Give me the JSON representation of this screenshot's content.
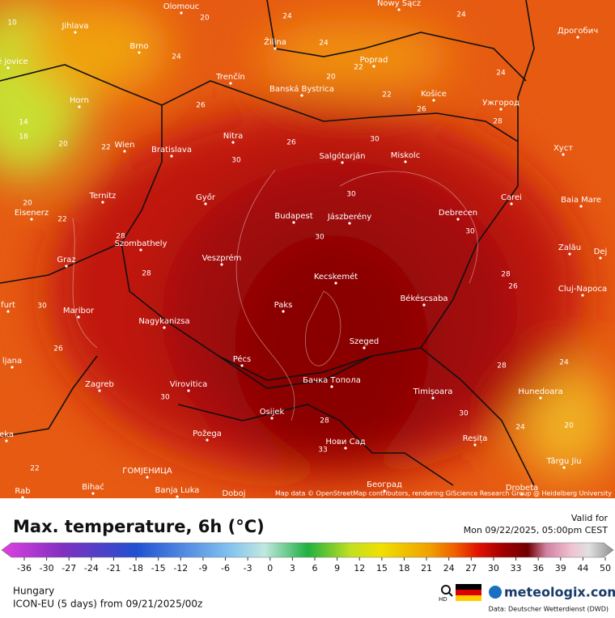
{
  "map": {
    "cities": [
      "Olomouc",
      "Nowy Sącz",
      "Jihlava",
      "Brno",
      "Žilina",
      "Poprad",
      "Дрогобич",
      "Trenčín",
      "Banská Bystrica",
      "Horn",
      "Košice",
      "Ужгород",
      "Nitra",
      "Wien",
      "Bratislava",
      "Salgótarján",
      "Miskolc",
      "Хуст",
      "Ternitz",
      "Győr",
      "Carei",
      "Baia Mare",
      "Eisenerz",
      "Budapest",
      "Jászberény",
      "Debrecen",
      "Szombathely",
      "Zalău",
      "Dej",
      "Graz",
      "Veszprém",
      "Kecskemét",
      "Cluj-Napoca",
      "Paks",
      "Békéscsaba",
      "furt",
      "Maribor",
      "Nagykanizsa",
      "Szeged",
      "Pécs",
      "ljana",
      "Бачка Топола",
      "Virovitica",
      "Timișoara",
      "Hunedoara",
      "Zagreb",
      "Osijek",
      "Požega",
      "Нови Сад",
      "Reșița",
      "Târgu Jiu",
      "Bihać",
      "ГОМЈЕНИЦА",
      "Banja Luka",
      "Doboj",
      "Београд",
      "Drobeta",
      "ské jovice",
      "eka",
      "Rab"
    ],
    "contour_labels": [
      10,
      20,
      24,
      24,
      24,
      24,
      22,
      20,
      24,
      22,
      26,
      26,
      28,
      14,
      18,
      20,
      22,
      30,
      26,
      30,
      30,
      20,
      22,
      30,
      30,
      28,
      28,
      28,
      26,
      30,
      26,
      24,
      28,
      30,
      30,
      28,
      24,
      20,
      22,
      33
    ],
    "attribution": "Map data © OpenStreetMap contributors, rendering GIScience Research Group @ Heidelberg University"
  },
  "legend": {
    "title": "Max. temperature, 6h (°C)",
    "valid_label": "Valid for",
    "valid_time": "Mon 09/22/2025, 05:00pm CEST",
    "ticks": [
      -36,
      -30,
      -27,
      -24,
      -21,
      -18,
      -15,
      -12,
      -9,
      -6,
      -3,
      0,
      3,
      6,
      9,
      12,
      15,
      18,
      21,
      24,
      27,
      30,
      33,
      36,
      39,
      44,
      50
    ]
  },
  "footer": {
    "region": "Hungary",
    "model": "ICON-EU (5 days) from 09/21/2025/00z",
    "hd": "HD",
    "brand": "meteologix.com",
    "source": "Data: Deutscher Wetterdienst (DWD)"
  }
}
